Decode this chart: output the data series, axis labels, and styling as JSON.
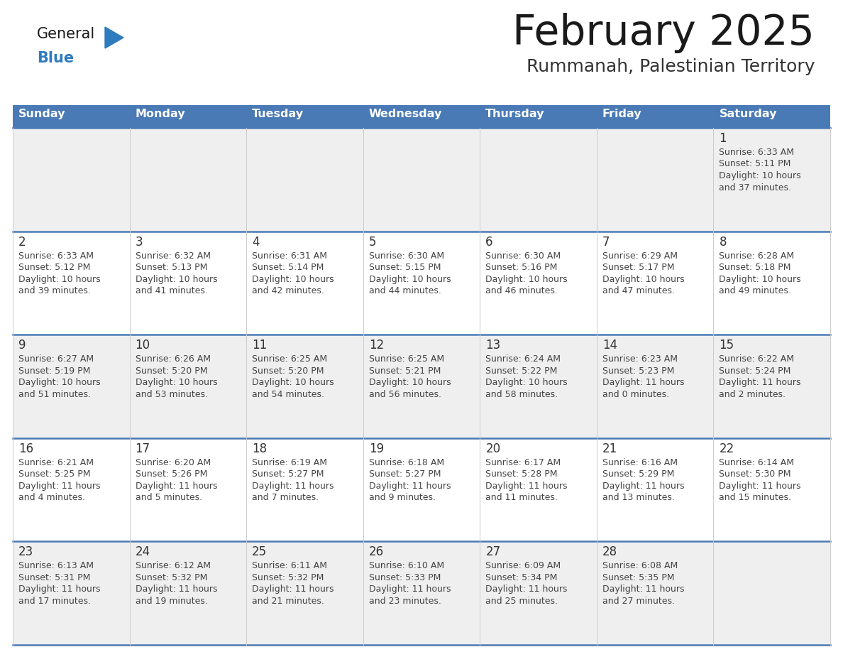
{
  "title": "February 2025",
  "subtitle": "Rummanah, Palestinian Territory",
  "header_color": "#4a7ab5",
  "header_text_color": "#ffffff",
  "day_names": [
    "Sunday",
    "Monday",
    "Tuesday",
    "Wednesday",
    "Thursday",
    "Friday",
    "Saturday"
  ],
  "bg_color": "#ffffff",
  "cell_bg_gray": "#efefef",
  "cell_bg_white": "#ffffff",
  "grid_line_color": "#4a7ab5",
  "day_num_color": "#333333",
  "text_color": "#444444",
  "logo_general_color": "#1a1a1a",
  "logo_blue_color": "#2e7bbf",
  "weeks": [
    [
      {
        "day": null
      },
      {
        "day": null
      },
      {
        "day": null
      },
      {
        "day": null
      },
      {
        "day": null
      },
      {
        "day": null
      },
      {
        "day": 1,
        "sunrise": "6:33 AM",
        "sunset": "5:11 PM",
        "daylight": "10 hours",
        "daylight2": "and 37 minutes."
      }
    ],
    [
      {
        "day": 2,
        "sunrise": "6:33 AM",
        "sunset": "5:12 PM",
        "daylight": "10 hours",
        "daylight2": "and 39 minutes."
      },
      {
        "day": 3,
        "sunrise": "6:32 AM",
        "sunset": "5:13 PM",
        "daylight": "10 hours",
        "daylight2": "and 41 minutes."
      },
      {
        "day": 4,
        "sunrise": "6:31 AM",
        "sunset": "5:14 PM",
        "daylight": "10 hours",
        "daylight2": "and 42 minutes."
      },
      {
        "day": 5,
        "sunrise": "6:30 AM",
        "sunset": "5:15 PM",
        "daylight": "10 hours",
        "daylight2": "and 44 minutes."
      },
      {
        "day": 6,
        "sunrise": "6:30 AM",
        "sunset": "5:16 PM",
        "daylight": "10 hours",
        "daylight2": "and 46 minutes."
      },
      {
        "day": 7,
        "sunrise": "6:29 AM",
        "sunset": "5:17 PM",
        "daylight": "10 hours",
        "daylight2": "and 47 minutes."
      },
      {
        "day": 8,
        "sunrise": "6:28 AM",
        "sunset": "5:18 PM",
        "daylight": "10 hours",
        "daylight2": "and 49 minutes."
      }
    ],
    [
      {
        "day": 9,
        "sunrise": "6:27 AM",
        "sunset": "5:19 PM",
        "daylight": "10 hours",
        "daylight2": "and 51 minutes."
      },
      {
        "day": 10,
        "sunrise": "6:26 AM",
        "sunset": "5:20 PM",
        "daylight": "10 hours",
        "daylight2": "and 53 minutes."
      },
      {
        "day": 11,
        "sunrise": "6:25 AM",
        "sunset": "5:20 PM",
        "daylight": "10 hours",
        "daylight2": "and 54 minutes."
      },
      {
        "day": 12,
        "sunrise": "6:25 AM",
        "sunset": "5:21 PM",
        "daylight": "10 hours",
        "daylight2": "and 56 minutes."
      },
      {
        "day": 13,
        "sunrise": "6:24 AM",
        "sunset": "5:22 PM",
        "daylight": "10 hours",
        "daylight2": "and 58 minutes."
      },
      {
        "day": 14,
        "sunrise": "6:23 AM",
        "sunset": "5:23 PM",
        "daylight": "11 hours",
        "daylight2": "and 0 minutes."
      },
      {
        "day": 15,
        "sunrise": "6:22 AM",
        "sunset": "5:24 PM",
        "daylight": "11 hours",
        "daylight2": "and 2 minutes."
      }
    ],
    [
      {
        "day": 16,
        "sunrise": "6:21 AM",
        "sunset": "5:25 PM",
        "daylight": "11 hours",
        "daylight2": "and 4 minutes."
      },
      {
        "day": 17,
        "sunrise": "6:20 AM",
        "sunset": "5:26 PM",
        "daylight": "11 hours",
        "daylight2": "and 5 minutes."
      },
      {
        "day": 18,
        "sunrise": "6:19 AM",
        "sunset": "5:27 PM",
        "daylight": "11 hours",
        "daylight2": "and 7 minutes."
      },
      {
        "day": 19,
        "sunrise": "6:18 AM",
        "sunset": "5:27 PM",
        "daylight": "11 hours",
        "daylight2": "and 9 minutes."
      },
      {
        "day": 20,
        "sunrise": "6:17 AM",
        "sunset": "5:28 PM",
        "daylight": "11 hours",
        "daylight2": "and 11 minutes."
      },
      {
        "day": 21,
        "sunrise": "6:16 AM",
        "sunset": "5:29 PM",
        "daylight": "11 hours",
        "daylight2": "and 13 minutes."
      },
      {
        "day": 22,
        "sunrise": "6:14 AM",
        "sunset": "5:30 PM",
        "daylight": "11 hours",
        "daylight2": "and 15 minutes."
      }
    ],
    [
      {
        "day": 23,
        "sunrise": "6:13 AM",
        "sunset": "5:31 PM",
        "daylight": "11 hours",
        "daylight2": "and 17 minutes."
      },
      {
        "day": 24,
        "sunrise": "6:12 AM",
        "sunset": "5:32 PM",
        "daylight": "11 hours",
        "daylight2": "and 19 minutes."
      },
      {
        "day": 25,
        "sunrise": "6:11 AM",
        "sunset": "5:32 PM",
        "daylight": "11 hours",
        "daylight2": "and 21 minutes."
      },
      {
        "day": 26,
        "sunrise": "6:10 AM",
        "sunset": "5:33 PM",
        "daylight": "11 hours",
        "daylight2": "and 23 minutes."
      },
      {
        "day": 27,
        "sunrise": "6:09 AM",
        "sunset": "5:34 PM",
        "daylight": "11 hours",
        "daylight2": "and 25 minutes."
      },
      {
        "day": 28,
        "sunrise": "6:08 AM",
        "sunset": "5:35 PM",
        "daylight": "11 hours",
        "daylight2": "and 27 minutes."
      },
      {
        "day": null
      }
    ]
  ]
}
